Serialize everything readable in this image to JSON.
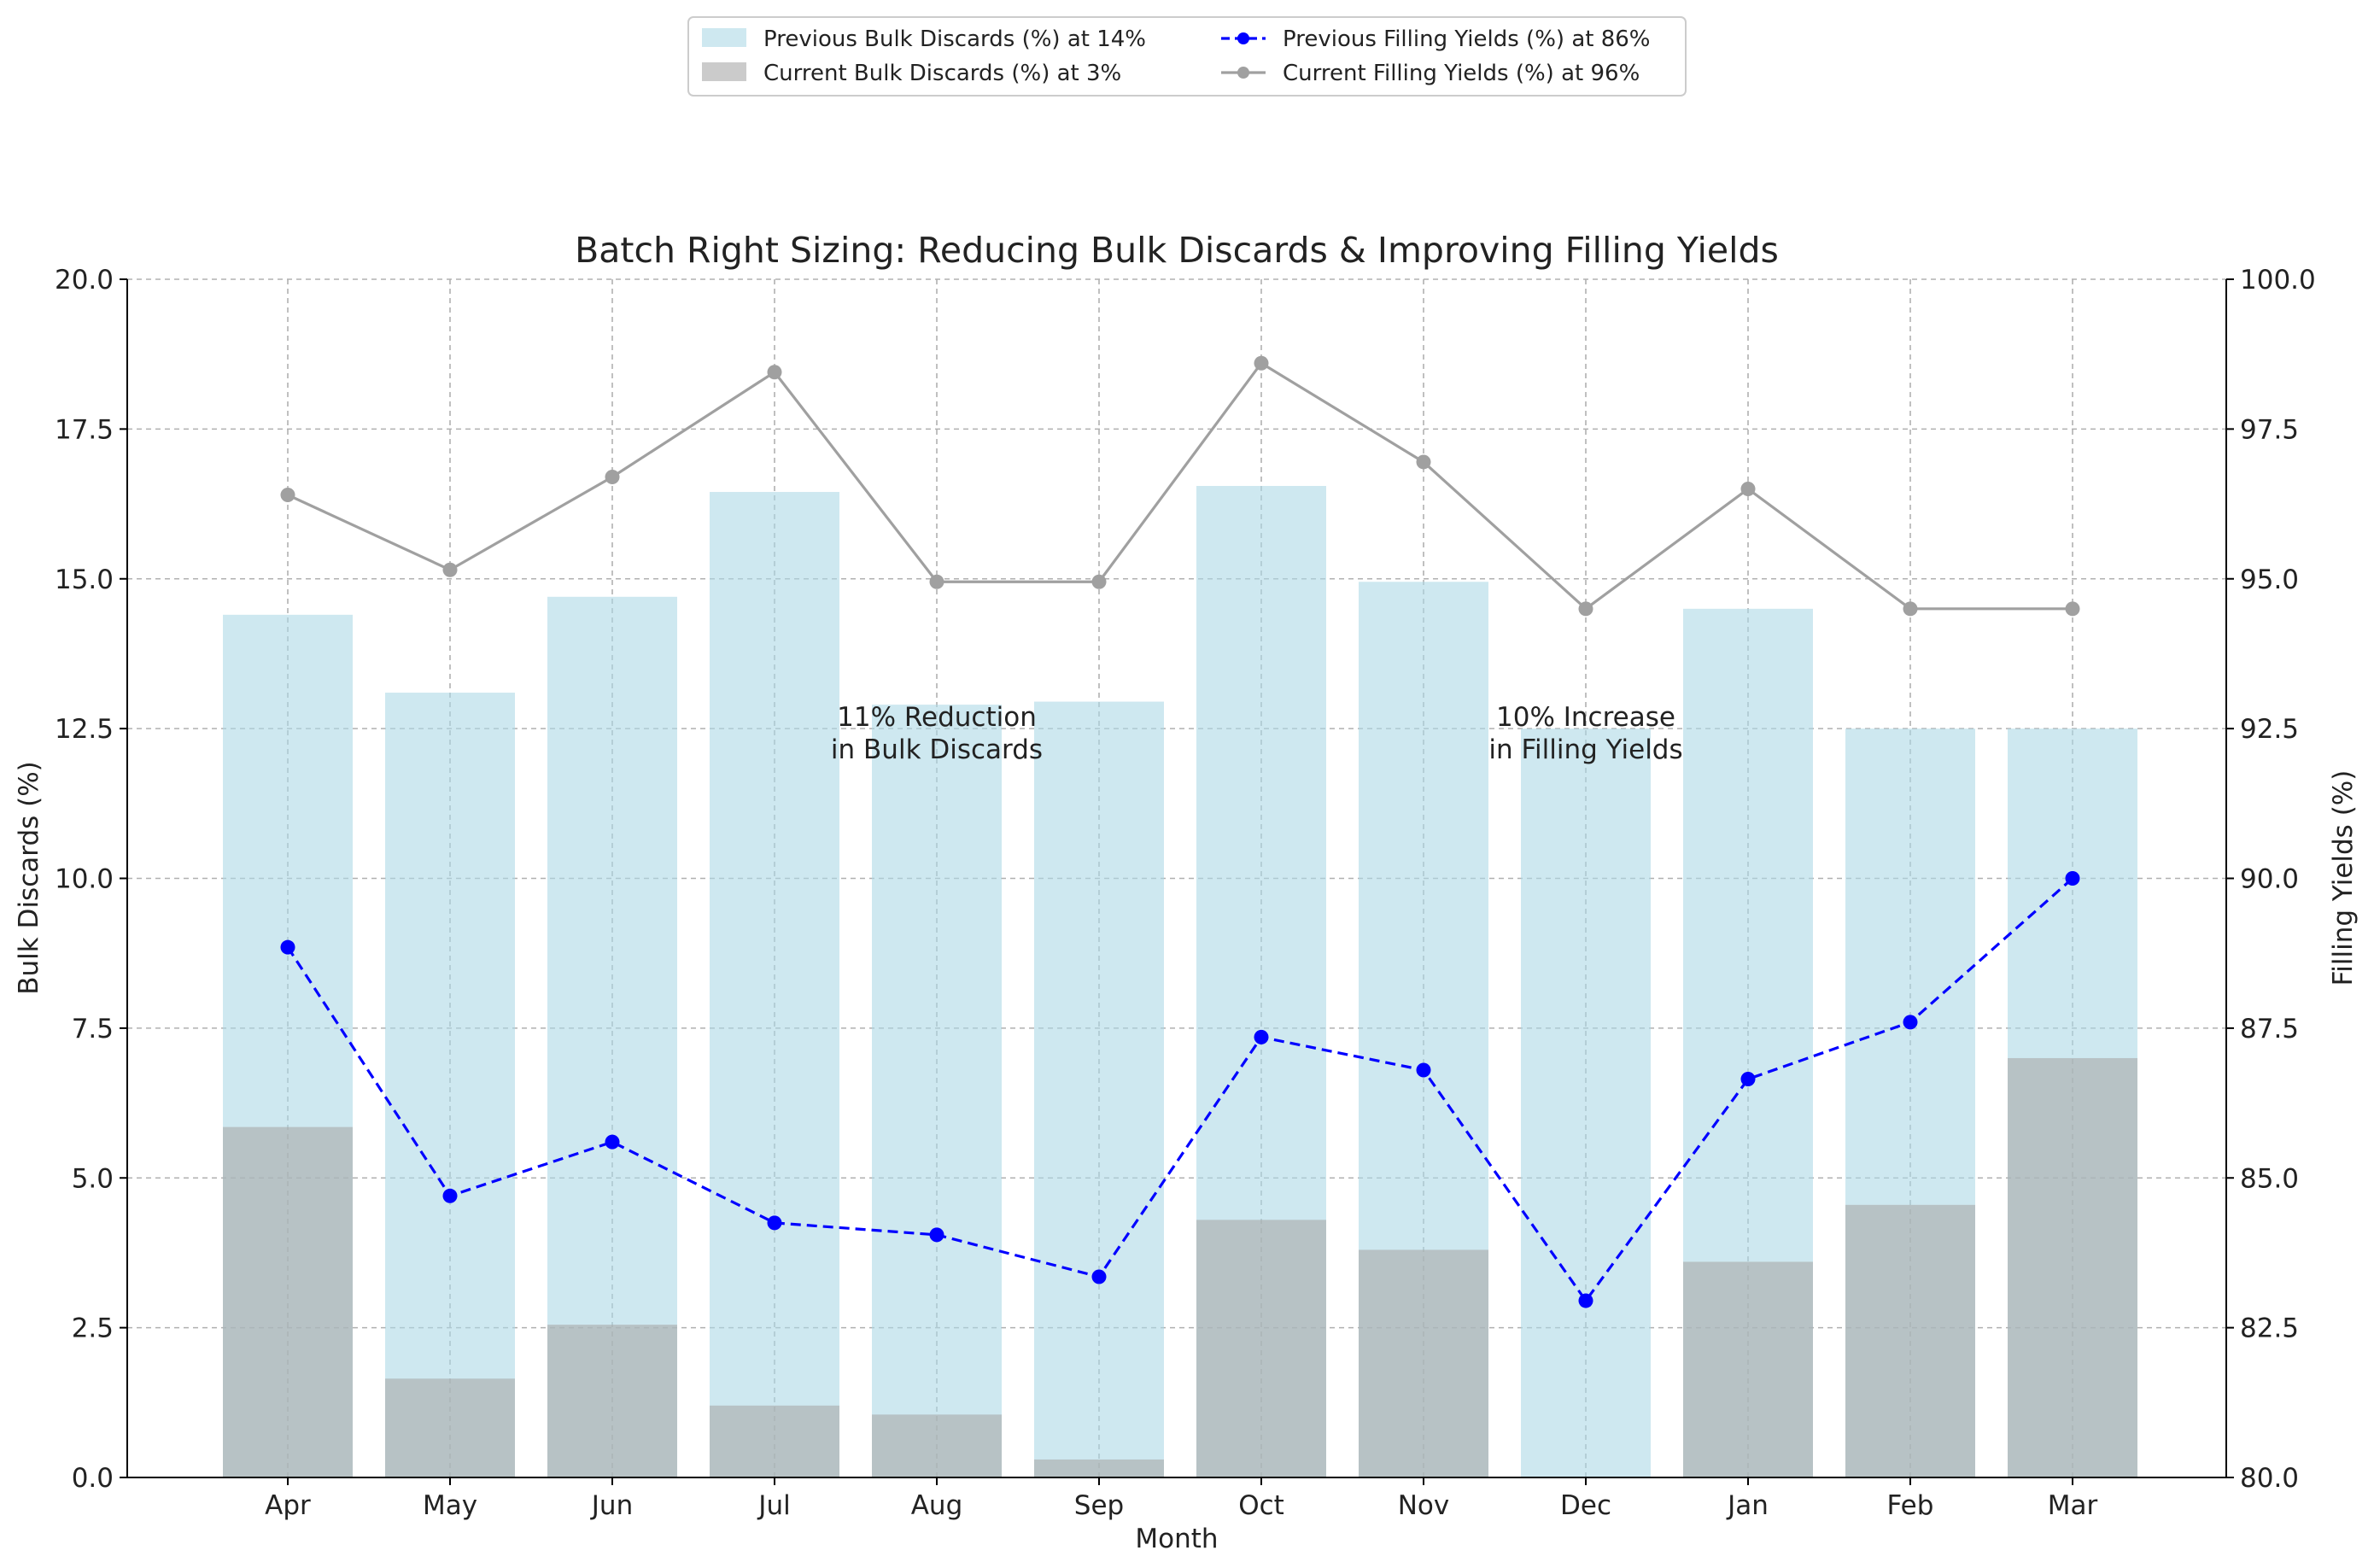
{
  "chart_data": {
    "type": "bar",
    "title": "Batch Right Sizing: Reducing Bulk Discards & Improving Filling Yields",
    "xlabel": "Month",
    "ylabel": "Bulk Discards (%)",
    "y2label": "Filling Yields (%)",
    "categories": [
      "Apr",
      "May",
      "Jun",
      "Jul",
      "Aug",
      "Sep",
      "Oct",
      "Nov",
      "Dec",
      "Jan",
      "Feb",
      "Mar"
    ],
    "ylim": [
      0,
      20
    ],
    "y2lim": [
      80,
      100
    ],
    "yticks": [
      "0.0",
      "2.5",
      "5.0",
      "7.5",
      "10.0",
      "12.5",
      "15.0",
      "17.5",
      "20.0"
    ],
    "y2ticks": [
      "80.0",
      "82.5",
      "85.0",
      "87.5",
      "90.0",
      "92.5",
      "95.0",
      "97.5",
      "100.0"
    ],
    "grid": true,
    "legend_position": "top-center",
    "series": [
      {
        "name": "Previous Bulk Discards (%) at 14%",
        "kind": "bar",
        "axis": "left",
        "color": "#add8e6",
        "values": [
          14.4,
          13.1,
          14.7,
          16.45,
          12.9,
          12.95,
          16.55,
          14.95,
          12.5,
          14.5,
          12.5,
          12.5
        ]
      },
      {
        "name": "Current Bulk Discards (%) at 3%",
        "kind": "bar",
        "axis": "left",
        "color": "#a9a9a9",
        "values": [
          5.85,
          1.65,
          2.55,
          1.2,
          1.05,
          0.3,
          4.3,
          3.8,
          0.0,
          3.6,
          4.55,
          7.0
        ]
      },
      {
        "name": "Previous Filling Yields (%) at 86%",
        "kind": "line",
        "axis": "right",
        "color": "#0000ff",
        "dashed": true,
        "values": [
          88.85,
          84.7,
          85.6,
          84.25,
          84.05,
          83.35,
          87.35,
          86.8,
          82.95,
          86.65,
          87.6,
          90.0
        ]
      },
      {
        "name": "Current Filling Yields (%) at 96%",
        "kind": "line",
        "axis": "right",
        "color": "#a0a0a0",
        "dashed": false,
        "values": [
          96.4,
          95.15,
          96.7,
          98.45,
          94.95,
          94.95,
          98.6,
          96.95,
          94.5,
          96.5,
          94.5,
          94.5
        ]
      }
    ],
    "annotations": [
      {
        "lines": [
          "11% Reduction",
          "in Bulk Discards"
        ],
        "category": "Aug",
        "y": 12.3
      },
      {
        "lines": [
          "10% Increase",
          "in Filling Yields"
        ],
        "category": "Dec",
        "y": 12.3
      }
    ]
  }
}
